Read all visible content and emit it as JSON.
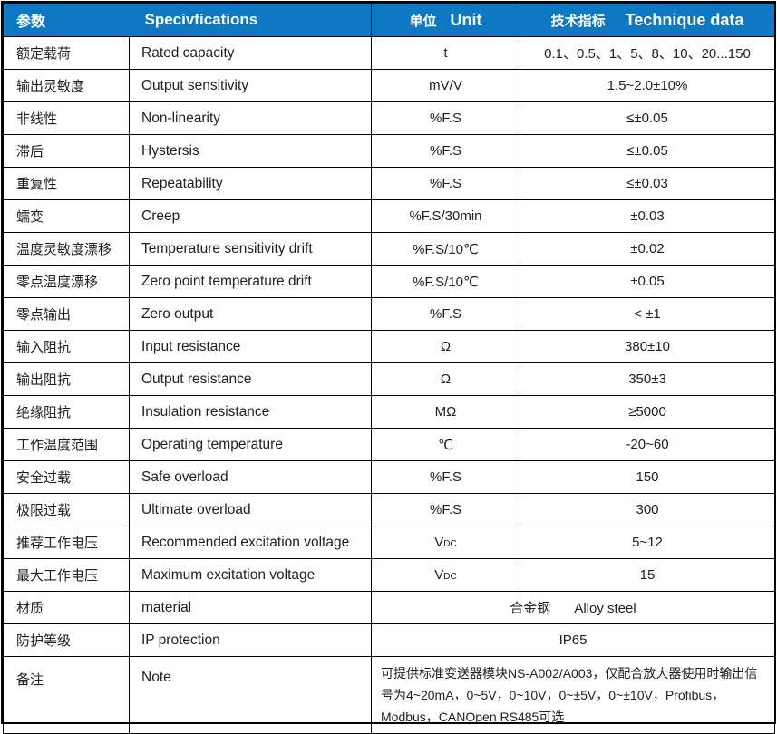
{
  "colors": {
    "header_bg": "#0d78c3",
    "header_text": "#ffffff",
    "border": "#000000",
    "body_text": "#212121"
  },
  "header": {
    "param": "参数",
    "spec": "Specivfications",
    "unit_zh": "单位",
    "unit_en": "Unit",
    "data_zh": "技术指标",
    "data_en": "Technique data"
  },
  "rows": [
    {
      "zh": "额定载荷",
      "en": "Rated capacity",
      "unit": "t",
      "value": "0.1、0.5、1、5、8、10、20...150"
    },
    {
      "zh": "输出灵敏度",
      "en": "Output sensitivity",
      "unit": "mV/V",
      "value": "1.5~2.0±10%"
    },
    {
      "zh": "非线性",
      "en": "Non-linearity",
      "unit": "%F.S",
      "value": "≤±0.05"
    },
    {
      "zh": "滞后",
      "en": "Hystersis",
      "unit": "%F.S",
      "value": "≤±0.05"
    },
    {
      "zh": "重复性",
      "en": "Repeatability",
      "unit": "%F.S",
      "value": "≤±0.03"
    },
    {
      "zh": "蠕变",
      "en": "Creep",
      "unit": "%F.S/30min",
      "value": "±0.03"
    },
    {
      "zh": "温度灵敏度漂移",
      "en": "Temperature sensitivity drift",
      "unit": "%F.S/10℃",
      "value": "±0.02"
    },
    {
      "zh": "零点温度漂移",
      "en": "Zero point temperature drift",
      "unit": "%F.S/10℃",
      "value": "±0.05"
    },
    {
      "zh": "零点输出",
      "en": "Zero output",
      "unit": "%F.S",
      "value": "< ±1"
    },
    {
      "zh": "输入阻抗",
      "en": "Input resistance",
      "unit": "Ω",
      "value": "380±10"
    },
    {
      "zh": "输出阻抗",
      "en": "Output resistance",
      "unit": "Ω",
      "value": "350±3"
    },
    {
      "zh": "绝缘阻抗",
      "en": "Insulation resistance",
      "unit": "MΩ",
      "value": "≥5000"
    },
    {
      "zh": "工作温度范围",
      "en": "Operating temperature",
      "unit": "℃",
      "value": "-20~60"
    },
    {
      "zh": "安全过载",
      "en": "Safe overload",
      "unit": "%F.S",
      "value": "150"
    },
    {
      "zh": "极限过载",
      "en": "Ultimate overload",
      "unit": "%F.S",
      "value": "300"
    },
    {
      "zh": "推荐工作电压",
      "en": "Recommended excitation voltage",
      "unit": "V",
      "unit_sub": "DC",
      "value": "5~12"
    },
    {
      "zh": "最大工作电压",
      "en": "Maximum excitation voltage",
      "unit": "V",
      "unit_sub": "DC",
      "value": "15"
    }
  ],
  "material_row": {
    "zh": "材质",
    "en": "material",
    "value_zh": "合金钢",
    "value_en": "Alloy steel"
  },
  "ip_row": {
    "zh": "防护等级",
    "en": "IP protection",
    "value": "IP65"
  },
  "note_row": {
    "zh": "备注",
    "en": "Note",
    "value": "可提供标准变送器模块NS-A002/A003，仅配合放大器使用时输出信号为4~20mA，0~5V，0~10V，0~±5V，0~±10V，Profibus，Modbus，CANOpen RS485可选"
  }
}
